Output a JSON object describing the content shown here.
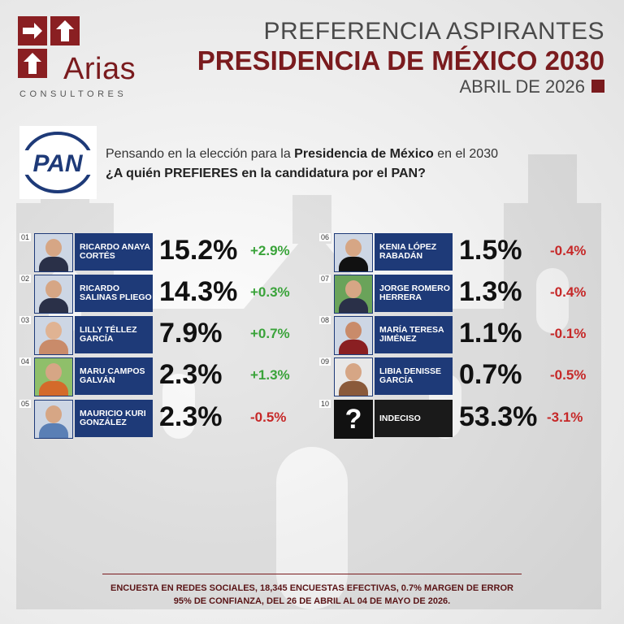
{
  "logo": {
    "name": "Arias",
    "sub": "CONSULTORES"
  },
  "header": {
    "line1": "PREFERENCIA ASPIRANTES",
    "line2": "PRESIDENCIA DE MÉXICO 2030",
    "line3": "ABRIL DE 2026"
  },
  "party": {
    "logo_text": "PAN"
  },
  "question": {
    "part1": "Pensando en la elección para la ",
    "bold1": "Presidencia de México",
    "part2": " en el 2030",
    "line2": "¿A quién PREFIERES en la candidatura por el PAN?"
  },
  "candidates_left": [
    {
      "num": "01",
      "name": "RICARDO ANAYA CORTÉS",
      "pct": "15.2%",
      "change": "+2.9%"
    },
    {
      "num": "02",
      "name": "RICARDO SALINAS PLIEGO",
      "pct": "14.3%",
      "change": "+0.3%"
    },
    {
      "num": "03",
      "name": "LILLY TÉLLEZ GARCÍA",
      "pct": "7.9%",
      "change": "+0.7%"
    },
    {
      "num": "04",
      "name": "MARU CAMPOS GALVÁN",
      "pct": "2.3%",
      "change": "+1.3%"
    },
    {
      "num": "05",
      "name": "MAURICIO KURI GONZÁLEZ",
      "pct": "2.3%",
      "change": "-0.5%"
    }
  ],
  "candidates_right": [
    {
      "num": "06",
      "name": "KENIA LÓPEZ RABADÁN",
      "pct": "1.5%",
      "change": "-0.4%"
    },
    {
      "num": "07",
      "name": "JORGE ROMERO HERRERA",
      "pct": "1.3%",
      "change": "-0.4%"
    },
    {
      "num": "08",
      "name": "MARÍA TERESA JIMÉNEZ",
      "pct": "1.1%",
      "change": "-0.1%"
    },
    {
      "num": "09",
      "name": "LIBIA DENISSE GARCÍA",
      "pct": "0.7%",
      "change": "-0.5%"
    },
    {
      "num": "10",
      "name": "INDECISO",
      "pct": "53.3%",
      "change": "-3.1%",
      "icon": "question-mark-icon"
    }
  ],
  "footer": {
    "line1": "ENCUESTA EN REDES SOCIALES, 18,345 ENCUESTAS EFECTIVAS, 0.7% MARGEN DE ERROR",
    "line2": "95% DE CONFIANZA, DEL 26 DE ABRIL AL 04 DE MAYO DE 2026."
  },
  "colors": {
    "brand": "#7a1b1e",
    "label_blue": "#1e3a78",
    "positive": "#3aa33a",
    "negative": "#c62828"
  }
}
